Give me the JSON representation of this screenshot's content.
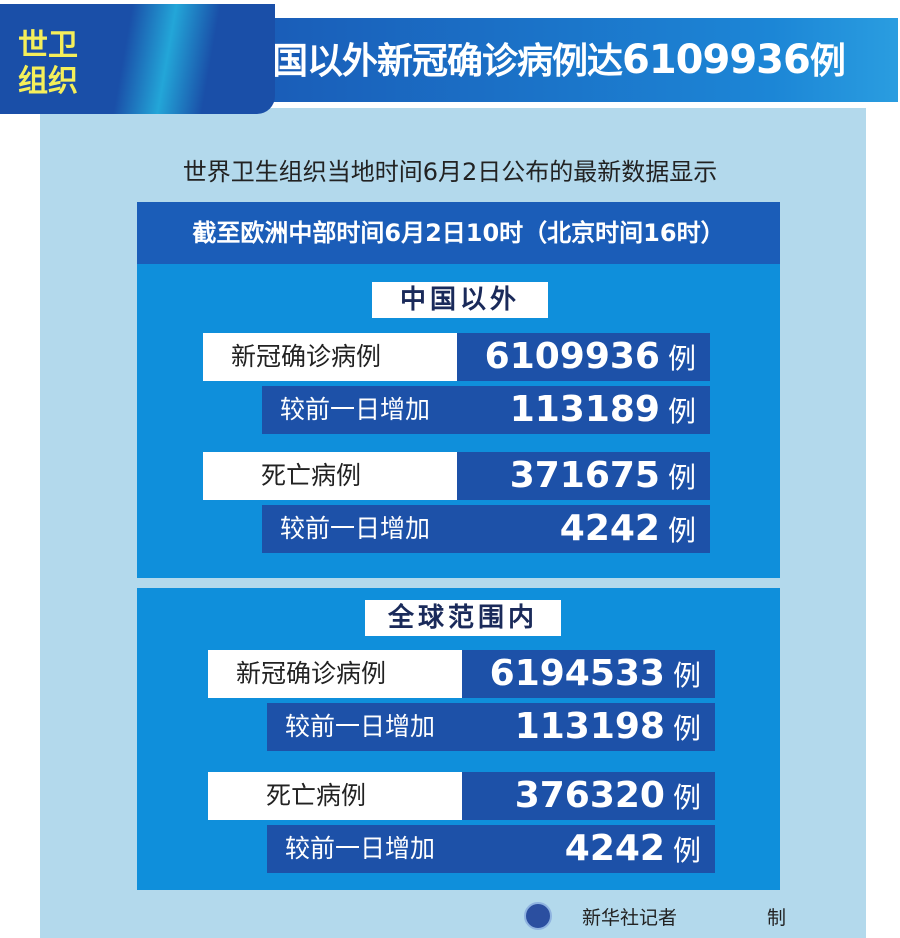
{
  "header": {
    "badge": "世卫组织",
    "title_text": "国以外新冠确诊病例达",
    "title_number": "6109936",
    "title_unit": "例"
  },
  "subtitle": "世界卫生组织当地时间6月2日公布的最新数据显示",
  "timestamp_bar": "截至欧洲中部时间6月2日10时（北京时间16时）",
  "sections": [
    {
      "label": "中国以外",
      "rows": [
        {
          "label": "新冠确诊病例",
          "value": "6109936",
          "unit": "例"
        },
        {
          "label": "较前一日增加",
          "value": "113189",
          "unit": "例"
        },
        {
          "label": "死亡病例",
          "value": "371675",
          "unit": "例"
        },
        {
          "label": "较前一日增加",
          "value": "4242",
          "unit": "例"
        }
      ]
    },
    {
      "label": "全球范围内",
      "rows": [
        {
          "label": "新冠确诊病例",
          "value": "6194533",
          "unit": "例"
        },
        {
          "label": "较前一日增加",
          "value": "113198",
          "unit": "例"
        },
        {
          "label": "死亡病例",
          "value": "376320",
          "unit": "例"
        },
        {
          "label": "较前一日增加",
          "value": "4242",
          "unit": "例"
        }
      ]
    }
  ],
  "footer": {
    "credit_start": "新华社记者",
    "credit_end": "制",
    "logo": "xinhua-logo"
  },
  "colors": {
    "panel": "#0f8fdb",
    "value_box": "#1d51a8",
    "background": "#b3d9ec",
    "badge_text": "#f5ef5a"
  }
}
